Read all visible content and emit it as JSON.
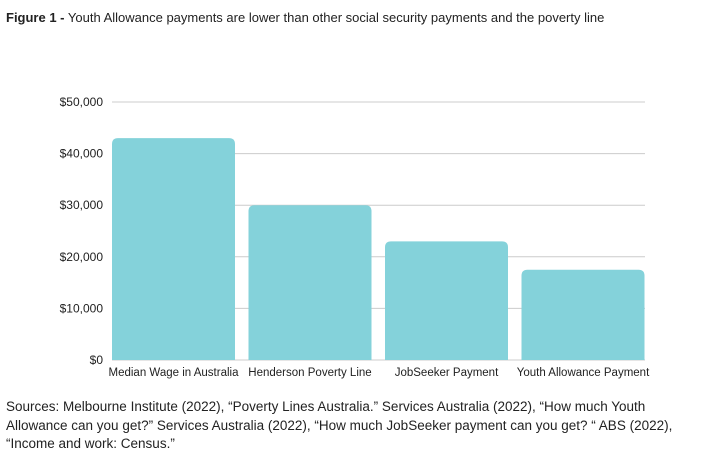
{
  "figure": {
    "label": "Figure 1 -",
    "title": "Youth Allowance payments are lower than other social security payments and the poverty line"
  },
  "sources": "Sources: Melbourne Institute (2022), “Poverty Lines Australia.” Services Australia (2022), “How much Youth Allowance can you get?” Services Australia (2022), “How much JobSeeker payment can you get? “ ABS (2022), “Income and work: Census.”",
  "colors": {
    "bar": "#84D2DA",
    "grid": "#CCCCCC",
    "text": "#222222"
  },
  "chart_data": {
    "type": "bar",
    "categories": [
      "Median Wage in Australia",
      "Henderson Poverty Line",
      "JobSeeker Payment",
      "Youth Allowance Payment"
    ],
    "values": [
      43000,
      30000,
      23000,
      17500
    ],
    "ylim": [
      0,
      50000
    ],
    "yticks": [
      0,
      10000,
      20000,
      30000,
      40000,
      50000
    ],
    "ytick_labels": [
      "$0",
      "$10,000",
      "$20,000",
      "$30,000",
      "$40,000",
      "$50,000"
    ],
    "grid": true,
    "legend": "none"
  }
}
